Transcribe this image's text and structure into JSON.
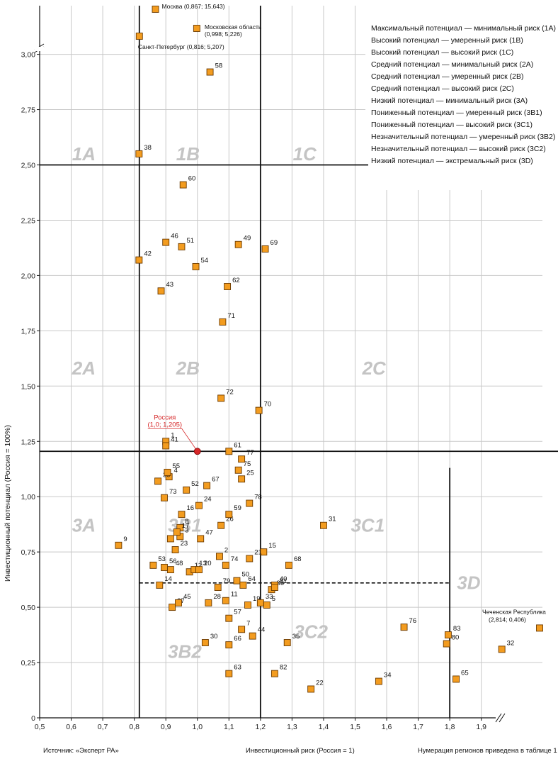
{
  "chart_data": {
    "type": "scatter",
    "xlabel": "Инвестиционный риск (Россия = 1)",
    "ylabel": "Инвестиционный потенциал (Россия = 100%)",
    "xlim": [
      0.5,
      2.0
    ],
    "ylim": [
      0,
      3.2
    ],
    "x_ticks": [
      "0,5",
      "0,6",
      "0,7",
      "0,8",
      "0,9",
      "1,0",
      "1,1",
      "1,2",
      "1,3",
      "1,4",
      "1,5",
      "1,6",
      "1,7",
      "1,8",
      "1,9"
    ],
    "y_ticks": [
      "0",
      "0,25",
      "0,50",
      "0,75",
      "1,00",
      "1,25",
      "1,50",
      "1,75",
      "2,00",
      "2,25",
      "2,50",
      "2,75",
      "3,00"
    ],
    "grid": true,
    "marker_color": "#f39c1f",
    "russia_color": "#d62728",
    "legend_position": "top-right",
    "legend": [
      "Максимальный потенциал — минимальный риск (1А)",
      "Высокий потенциал — умеренный риск (1В)",
      "Высокий потенциал — высокий риск (1С)",
      "Средний потенциал — минимальный риск (2А)",
      "Средний потенциал — умеренный риск (2В)",
      "Средний потенциал — высокий риск (2С)",
      "Низкий потенциал — минимальный риск (3А)",
      "Пониженный потенциал — умеренный риск (3В1)",
      "Пониженный потенциал — высокий риск (3С1)",
      "Незначительный потенциал — умеренный риск (3В2)",
      "Незначительный потенциал — высокий риск (3С2)",
      "Низкий потенциал — экстремальный риск (3D)"
    ],
    "zones": [
      {
        "label": "1A",
        "x": 0.64,
        "y": 2.56
      },
      {
        "label": "1B",
        "x": 0.97,
        "y": 2.56
      },
      {
        "label": "1C",
        "x": 1.34,
        "y": 2.56
      },
      {
        "label": "2A",
        "x": 0.64,
        "y": 1.59
      },
      {
        "label": "2B",
        "x": 0.97,
        "y": 1.59
      },
      {
        "label": "2C",
        "x": 1.56,
        "y": 1.59
      },
      {
        "label": "3A",
        "x": 0.64,
        "y": 0.88
      },
      {
        "label": "3B1",
        "x": 0.96,
        "y": 0.88
      },
      {
        "label": "3C1",
        "x": 1.54,
        "y": 0.88
      },
      {
        "label": "3D",
        "x": 1.86,
        "y": 0.62
      },
      {
        "label": "3C2",
        "x": 1.36,
        "y": 0.4
      },
      {
        "label": "3B2",
        "x": 0.96,
        "y": 0.31
      }
    ],
    "boundaries": {
      "x_solid": [
        0.816,
        1.2
      ],
      "x_3d": 1.8,
      "y_upper": 2.5,
      "y_russia": 1.205,
      "y_dashed": 0.61
    },
    "russia": {
      "label": "Россия",
      "coords": "(1,0; 1,205)",
      "x": 1.0,
      "y": 1.205
    },
    "outliers": [
      {
        "label": "Москва (0,867; 15,643)",
        "x": 0.867
      },
      {
        "label": "Московская область",
        "coords": "(0,998; 5,226)",
        "x": 0.998
      },
      {
        "label": "Санкт-Петербург (0,816; 5,207)",
        "x": 0.816
      },
      {
        "label": "Чеченская Республика",
        "coords": "(2,814; 0,406)",
        "y": 0.406
      }
    ],
    "points": [
      {
        "id": "1",
        "x": 0.9,
        "y": 1.25
      },
      {
        "id": "2",
        "x": 1.07,
        "y": 0.73
      },
      {
        "id": "3",
        "x": 0.945,
        "y": 0.82
      },
      {
        "id": "4",
        "x": 0.91,
        "y": 1.09
      },
      {
        "id": "5",
        "x": 1.22,
        "y": 0.51
      },
      {
        "id": "6",
        "x": 0.915,
        "y": 0.81
      },
      {
        "id": "7",
        "x": 1.14,
        "y": 0.4
      },
      {
        "id": "8",
        "x": 0.945,
        "y": 0.86
      },
      {
        "id": "9",
        "x": 0.75,
        "y": 0.78
      },
      {
        "id": "11",
        "x": 1.09,
        "y": 0.53
      },
      {
        "id": "12",
        "x": 0.975,
        "y": 0.66
      },
      {
        "id": "13",
        "x": 0.99,
        "y": 0.67
      },
      {
        "id": "14",
        "x": 0.88,
        "y": 0.6
      },
      {
        "id": "15",
        "x": 1.21,
        "y": 0.75
      },
      {
        "id": "16",
        "x": 0.95,
        "y": 0.92
      },
      {
        "id": "17",
        "x": 0.935,
        "y": 0.84
      },
      {
        "id": "19",
        "x": 1.16,
        "y": 0.51
      },
      {
        "id": "20",
        "x": 1.005,
        "y": 0.67
      },
      {
        "id": "21",
        "x": 1.165,
        "y": 0.72
      },
      {
        "id": "22",
        "x": 1.36,
        "y": 0.13
      },
      {
        "id": "23",
        "x": 0.93,
        "y": 0.76
      },
      {
        "id": "24",
        "x": 1.005,
        "y": 0.96
      },
      {
        "id": "25",
        "x": 1.14,
        "y": 1.08
      },
      {
        "id": "26",
        "x": 1.075,
        "y": 0.87
      },
      {
        "id": "27",
        "x": 0.92,
        "y": 0.5
      },
      {
        "id": "28",
        "x": 1.035,
        "y": 0.52
      },
      {
        "id": "30",
        "x": 1.025,
        "y": 0.34
      },
      {
        "id": "31",
        "x": 1.4,
        "y": 0.87
      },
      {
        "id": "32",
        "x": 1.965,
        "y": 0.31
      },
      {
        "id": "33",
        "x": 1.2,
        "y": 0.52
      },
      {
        "id": "34",
        "x": 1.575,
        "y": 0.165
      },
      {
        "id": "35",
        "x": 1.285,
        "y": 0.34
      },
      {
        "id": "36",
        "x": 1.235,
        "y": 0.58
      },
      {
        "id": "38",
        "x": 0.815,
        "y": 2.55
      },
      {
        "id": "39",
        "x": 0.875,
        "y": 1.07
      },
      {
        "id": "40",
        "x": 1.245,
        "y": 0.6
      },
      {
        "id": "41",
        "x": 0.9,
        "y": 1.23
      },
      {
        "id": "42",
        "x": 0.815,
        "y": 2.07
      },
      {
        "id": "43",
        "x": 0.885,
        "y": 1.93
      },
      {
        "id": "44",
        "x": 1.175,
        "y": 0.37
      },
      {
        "id": "45",
        "x": 0.94,
        "y": 0.52
      },
      {
        "id": "46",
        "x": 0.9,
        "y": 2.15
      },
      {
        "id": "47",
        "x": 1.01,
        "y": 0.81
      },
      {
        "id": "48",
        "x": 0.915,
        "y": 0.67
      },
      {
        "id": "49",
        "x": 1.13,
        "y": 2.14
      },
      {
        "id": "50",
        "x": 1.125,
        "y": 0.62
      },
      {
        "id": "51",
        "x": 0.95,
        "y": 2.13
      },
      {
        "id": "52",
        "x": 0.965,
        "y": 1.03
      },
      {
        "id": "53",
        "x": 0.86,
        "y": 0.69
      },
      {
        "id": "54",
        "x": 0.995,
        "y": 2.04
      },
      {
        "id": "55",
        "x": 0.905,
        "y": 1.11
      },
      {
        "id": "56",
        "x": 0.895,
        "y": 0.68
      },
      {
        "id": "57",
        "x": 1.1,
        "y": 0.45
      },
      {
        "id": "58",
        "x": 1.04,
        "y": 2.92
      },
      {
        "id": "59",
        "x": 1.1,
        "y": 0.92
      },
      {
        "id": "60",
        "x": 0.955,
        "y": 2.41
      },
      {
        "id": "61",
        "x": 1.1,
        "y": 1.205
      },
      {
        "id": "62",
        "x": 1.095,
        "y": 1.95
      },
      {
        "id": "63",
        "x": 1.1,
        "y": 0.2
      },
      {
        "id": "64",
        "x": 1.145,
        "y": 0.6
      },
      {
        "id": "65",
        "x": 1.82,
        "y": 0.175
      },
      {
        "id": "66",
        "x": 1.1,
        "y": 0.33
      },
      {
        "id": "67",
        "x": 1.03,
        "y": 1.05
      },
      {
        "id": "68",
        "x": 1.29,
        "y": 0.69
      },
      {
        "id": "69",
        "x": 1.215,
        "y": 2.12
      },
      {
        "id": "70",
        "x": 1.195,
        "y": 1.39
      },
      {
        "id": "71",
        "x": 1.08,
        "y": 1.79
      },
      {
        "id": "72",
        "x": 1.075,
        "y": 1.445
      },
      {
        "id": "73",
        "x": 0.895,
        "y": 0.995
      },
      {
        "id": "74",
        "x": 1.09,
        "y": 0.69
      },
      {
        "id": "75",
        "x": 1.13,
        "y": 1.12
      },
      {
        "id": "76",
        "x": 1.655,
        "y": 0.41
      },
      {
        "id": "77",
        "x": 1.14,
        "y": 1.17
      },
      {
        "id": "78",
        "x": 1.165,
        "y": 0.97
      },
      {
        "id": "79",
        "x": 1.065,
        "y": 0.59
      },
      {
        "id": "80",
        "x": 1.79,
        "y": 0.335
      },
      {
        "id": "81",
        "x": 1.245,
        "y": 0.59
      },
      {
        "id": "82",
        "x": 1.245,
        "y": 0.2
      },
      {
        "id": "83",
        "x": 1.795,
        "y": 0.375
      }
    ]
  },
  "footer": {
    "source": "Источник: «Эксперт РА»",
    "numbering": "Нумерация регионов приведена в таблице 1"
  }
}
